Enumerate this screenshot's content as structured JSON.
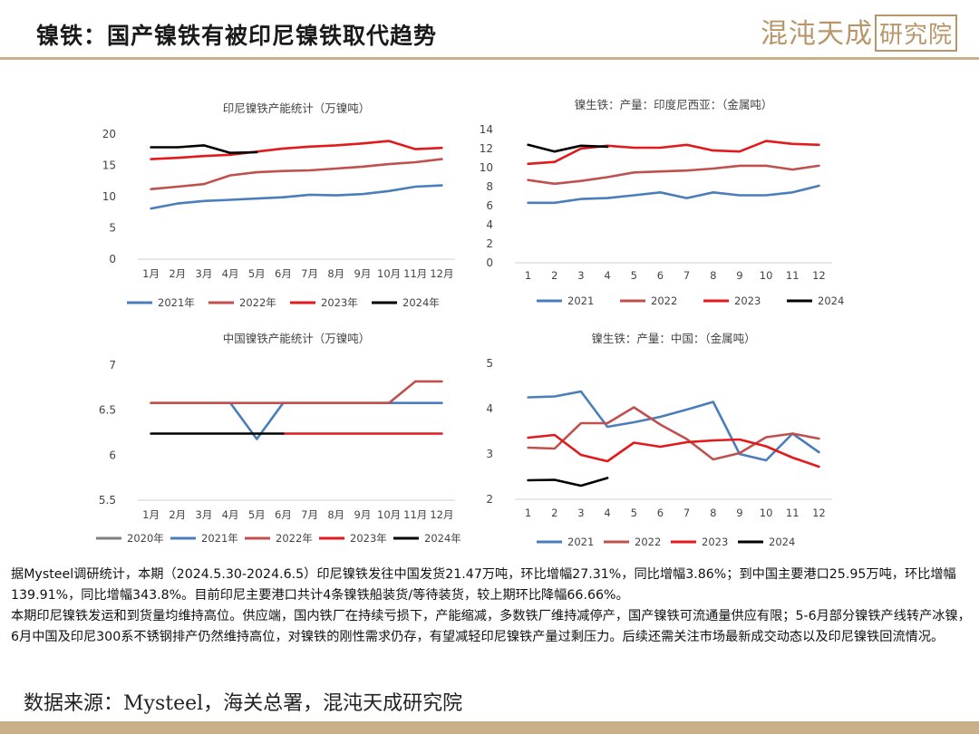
{
  "header": {
    "title": "镍铁：国产镍铁有被印尼镍铁取代趋势",
    "brand": "混沌天成",
    "brand_box": "研究院"
  },
  "chart_data": [
    {
      "id": "c1",
      "type": "line",
      "title": "印尼镍铁产能统计（万镍吨）",
      "categories": [
        "1月",
        "2月",
        "3月",
        "4月",
        "5月",
        "6月",
        "7月",
        "8月",
        "9月",
        "10月",
        "11月",
        "12月"
      ],
      "ylim": [
        0,
        20
      ],
      "yticks": [
        0,
        5,
        10,
        15,
        20
      ],
      "ytick_labels": [
        "0",
        "5",
        "10",
        "15",
        "20"
      ],
      "grid": false,
      "legend": "bottom",
      "series": [
        {
          "name": "2021年",
          "color": "#4a7ebb",
          "values": [
            8.1,
            8.9,
            9.3,
            9.5,
            9.7,
            9.9,
            10.3,
            10.2,
            10.4,
            10.9,
            11.6,
            11.8
          ]
        },
        {
          "name": "2022年",
          "color": "#c0504d",
          "values": [
            11.2,
            11.6,
            12.0,
            13.4,
            13.9,
            14.1,
            14.2,
            14.5,
            14.8,
            15.2,
            15.5,
            16.0
          ]
        },
        {
          "name": "2023年",
          "color": "#e31a1c",
          "values": [
            16.0,
            16.2,
            16.5,
            16.7,
            17.2,
            17.7,
            18.0,
            18.2,
            18.5,
            18.9,
            17.6,
            17.8
          ]
        },
        {
          "name": "2024年",
          "color": "#000000",
          "values": [
            17.9,
            17.9,
            18.2,
            17.0,
            17.1,
            null,
            null,
            null,
            null,
            null,
            null,
            null
          ]
        }
      ]
    },
    {
      "id": "c2",
      "type": "line",
      "title": "镍生铁：产量：印度尼西亚：（金属吨）",
      "categories": [
        "1",
        "2",
        "3",
        "4",
        "5",
        "6",
        "7",
        "8",
        "9",
        "10",
        "11",
        "12"
      ],
      "ylim": [
        0,
        14
      ],
      "yticks": [
        0,
        2,
        4,
        6,
        8,
        10,
        12,
        14
      ],
      "ytick_labels": [
        "0",
        "2",
        "4",
        "6",
        "8",
        "10",
        "12",
        "14"
      ],
      "grid": false,
      "legend": "bottom",
      "series": [
        {
          "name": "2021",
          "color": "#4a7ebb",
          "values": [
            6.3,
            6.3,
            6.7,
            6.8,
            7.1,
            7.4,
            6.8,
            7.4,
            7.1,
            7.1,
            7.4,
            8.1
          ]
        },
        {
          "name": "2022",
          "color": "#c0504d",
          "values": [
            8.7,
            8.3,
            8.6,
            9.0,
            9.5,
            9.6,
            9.7,
            9.9,
            10.2,
            10.2,
            9.8,
            10.2
          ]
        },
        {
          "name": "2023",
          "color": "#e31a1c",
          "values": [
            10.4,
            10.6,
            12.0,
            12.3,
            12.1,
            12.1,
            12.4,
            11.8,
            11.7,
            12.8,
            12.5,
            12.4
          ]
        },
        {
          "name": "2024",
          "color": "#000000",
          "values": [
            12.4,
            11.7,
            12.3,
            12.2,
            null,
            null,
            null,
            null,
            null,
            null,
            null,
            null
          ]
        }
      ]
    },
    {
      "id": "c3",
      "type": "line",
      "title": "中国镍铁产能统计（万镍吨）",
      "categories": [
        "1月",
        "2月",
        "3月",
        "4月",
        "5月",
        "6月",
        "7月",
        "8月",
        "9月",
        "10月",
        "11月",
        "12月"
      ],
      "ylim": [
        5.5,
        7
      ],
      "yticks": [
        5.5,
        6,
        6.5,
        7
      ],
      "ytick_labels": [
        "5.5",
        "6",
        "6.5",
        "7"
      ],
      "grid": false,
      "legend": "bottom",
      "series": [
        {
          "name": "2020年",
          "color": "#7f7f7f",
          "values": [
            null,
            null,
            null,
            null,
            null,
            null,
            null,
            null,
            null,
            null,
            null,
            null
          ]
        },
        {
          "name": "2021年",
          "color": "#4a7ebb",
          "values": [
            6.58,
            6.58,
            6.58,
            6.58,
            6.18,
            6.58,
            6.58,
            6.58,
            6.58,
            6.58,
            6.58,
            6.58
          ]
        },
        {
          "name": "2022年",
          "color": "#c0504d",
          "values": [
            6.58,
            6.58,
            6.58,
            6.58,
            6.58,
            6.58,
            6.58,
            6.58,
            6.58,
            6.58,
            6.82,
            6.82
          ]
        },
        {
          "name": "2023年",
          "color": "#e31a1c",
          "values": [
            null,
            null,
            null,
            null,
            null,
            6.24,
            6.24,
            6.24,
            6.24,
            6.24,
            6.24,
            6.24
          ]
        },
        {
          "name": "2024年",
          "color": "#000000",
          "values": [
            6.24,
            6.24,
            6.24,
            6.24,
            6.24,
            6.24,
            null,
            null,
            null,
            null,
            null,
            null
          ]
        }
      ]
    },
    {
      "id": "c4",
      "type": "line",
      "title": "镍生铁：产量：中国：（金属吨）",
      "categories": [
        "1",
        "2",
        "3",
        "4",
        "5",
        "6",
        "7",
        "8",
        "9",
        "10",
        "11",
        "12"
      ],
      "ylim": [
        2,
        5
      ],
      "yticks": [
        2,
        3,
        4,
        5
      ],
      "ytick_labels": [
        "2",
        "3",
        "4",
        "5"
      ],
      "grid": false,
      "legend": "bottom",
      "series": [
        {
          "name": "2021",
          "color": "#4a7ebb",
          "values": [
            4.25,
            4.27,
            4.38,
            3.6,
            3.7,
            3.82,
            3.98,
            4.15,
            3.0,
            2.86,
            3.45,
            3.04
          ]
        },
        {
          "name": "2022",
          "color": "#c0504d",
          "values": [
            3.14,
            3.12,
            3.68,
            3.68,
            4.03,
            3.65,
            3.33,
            2.88,
            3.02,
            3.37,
            3.45,
            3.34
          ]
        },
        {
          "name": "2023",
          "color": "#e31a1c",
          "values": [
            3.36,
            3.42,
            2.98,
            2.84,
            3.25,
            3.16,
            3.26,
            3.3,
            3.32,
            3.17,
            2.92,
            2.72
          ]
        },
        {
          "name": "2024",
          "color": "#000000",
          "values": [
            2.42,
            2.43,
            2.3,
            2.47,
            null,
            null,
            null,
            null,
            null,
            null,
            null,
            null
          ]
        }
      ]
    }
  ],
  "body": {
    "para1": "据Mysteel调研统计，本期（2024.5.30-2024.6.5）印尼镍铁发往中国发货21.47万吨，环比增幅27.31%，同比增幅3.86%；到中国主要港口25.95万吨，环比增幅139.91%，同比增幅343.8%。目前印尼主要港口共计4条镍铁船装货/等待装货，较上期环比降幅66.66%。",
    "para2": "本期印尼镍铁发运和到货量均维持高位。供应端，国内铁厂在持续亏损下，产能缩减，多数铁厂维持减停产，国产镍铁可流通量供应有限；5-6月部分镍铁产线转产冰镍，6月中国及印尼300系不锈钢排产仍然维持高位，对镍铁的刚性需求仍存，有望减轻印尼镍铁产量过剩压力。后续还需关注市场最新成交动态以及印尼镍铁回流情况。"
  },
  "footer": {
    "source": "数据来源：Mysteel，海关总署，混沌天成研究院"
  }
}
